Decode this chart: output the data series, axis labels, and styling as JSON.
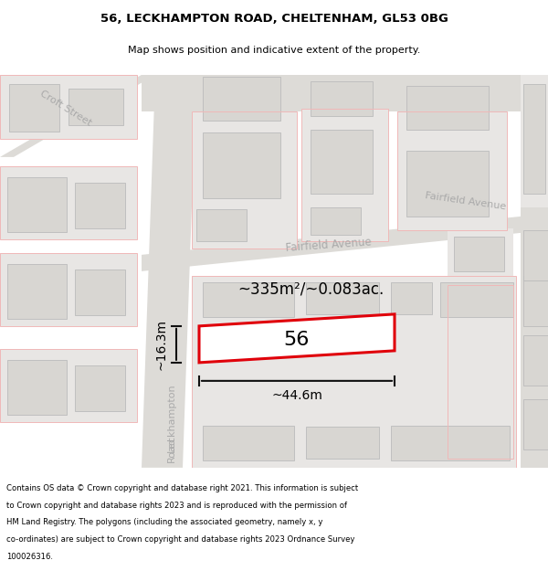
{
  "title_line1": "56, LECKHAMPTON ROAD, CHELTENHAM, GL53 0BG",
  "title_line2": "Map shows position and indicative extent of the property.",
  "footer_text": "Contains OS data © Crown copyright and database right 2021. This information is subject to Crown copyright and database rights 2023 and is reproduced with the permission of HM Land Registry. The polygons (including the associated geometry, namely x, y co-ordinates) are subject to Crown copyright and database rights 2023 Ordnance Survey 100026316.",
  "area_label": "~335m²/~0.083ac.",
  "width_label": "~44.6m",
  "height_label": "~16.3m",
  "property_number": "56",
  "map_bg": "#f5f4f2",
  "road_color": "#dddbd7",
  "block_fill": "#e8e6e4",
  "block_stroke": "#cccccc",
  "inner_fill": "#d8d6d2",
  "inner_stroke": "#bbbbbb",
  "red_stroke": "#e8e8e8",
  "highlight_stroke": "#e0000a",
  "highlight_fill": "#ffffff",
  "street_label_color": "#aaaaaa",
  "title_bg": "#ffffff",
  "footer_bg": "#ffffff",
  "dim_color": "#111111"
}
